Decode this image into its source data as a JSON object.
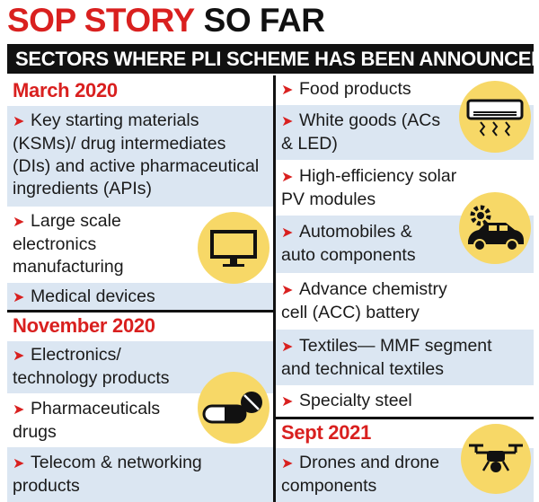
{
  "title": {
    "red": "SOP STORY",
    "black": "SO FAR"
  },
  "banner": "SECTORS WHERE PLI SCHEME HAS BEEN ANNOUNCED",
  "bullet_glyph": "➤",
  "colors": {
    "accent_red": "#d9201f",
    "row_blue": "#dbe6f2",
    "icon_yellow": "#f7d867",
    "black": "#111111"
  },
  "left": {
    "march": {
      "heading": "March 2020",
      "items": [
        {
          "line1": "Key starting materials",
          "line2": "(KSMs)/ drug intermediates",
          "line3": "(DIs) and active pharmaceutical",
          "line4": "ingredients (APIs)"
        },
        {
          "line1": "Large scale",
          "line2": "electronics",
          "line3": "manufacturing",
          "icon": "monitor-icon"
        },
        {
          "line1": "Medical devices"
        }
      ]
    },
    "november": {
      "heading": "November 2020",
      "items": [
        {
          "line1": "Electronics/",
          "line2": "technology products"
        },
        {
          "line1": "Pharmaceuticals",
          "line2": "drugs",
          "icon": "pills-icon"
        },
        {
          "line1": "Telecom & networking",
          "line2": "products"
        }
      ]
    }
  },
  "right": {
    "items": [
      {
        "line1": "Food products"
      },
      {
        "line1": "White goods (ACs",
        "line2": "& LED)",
        "icon": "air-conditioner-icon"
      },
      {
        "line1": "High-efficiency solar",
        "line2": "PV modules"
      },
      {
        "line1": "Automobiles &",
        "line2": "auto components",
        "icon": "car-gear-icon"
      },
      {
        "line1": "Advance chemistry",
        "line2": "cell (ACC) battery"
      },
      {
        "line1": "Textiles— MMF segment",
        "line2": "and technical textiles"
      },
      {
        "line1": "Specialty steel"
      }
    ],
    "sept": {
      "heading": "Sept 2021",
      "items": [
        {
          "line1": "Drones and drone",
          "line2": "components",
          "icon": "drone-icon"
        }
      ]
    }
  }
}
